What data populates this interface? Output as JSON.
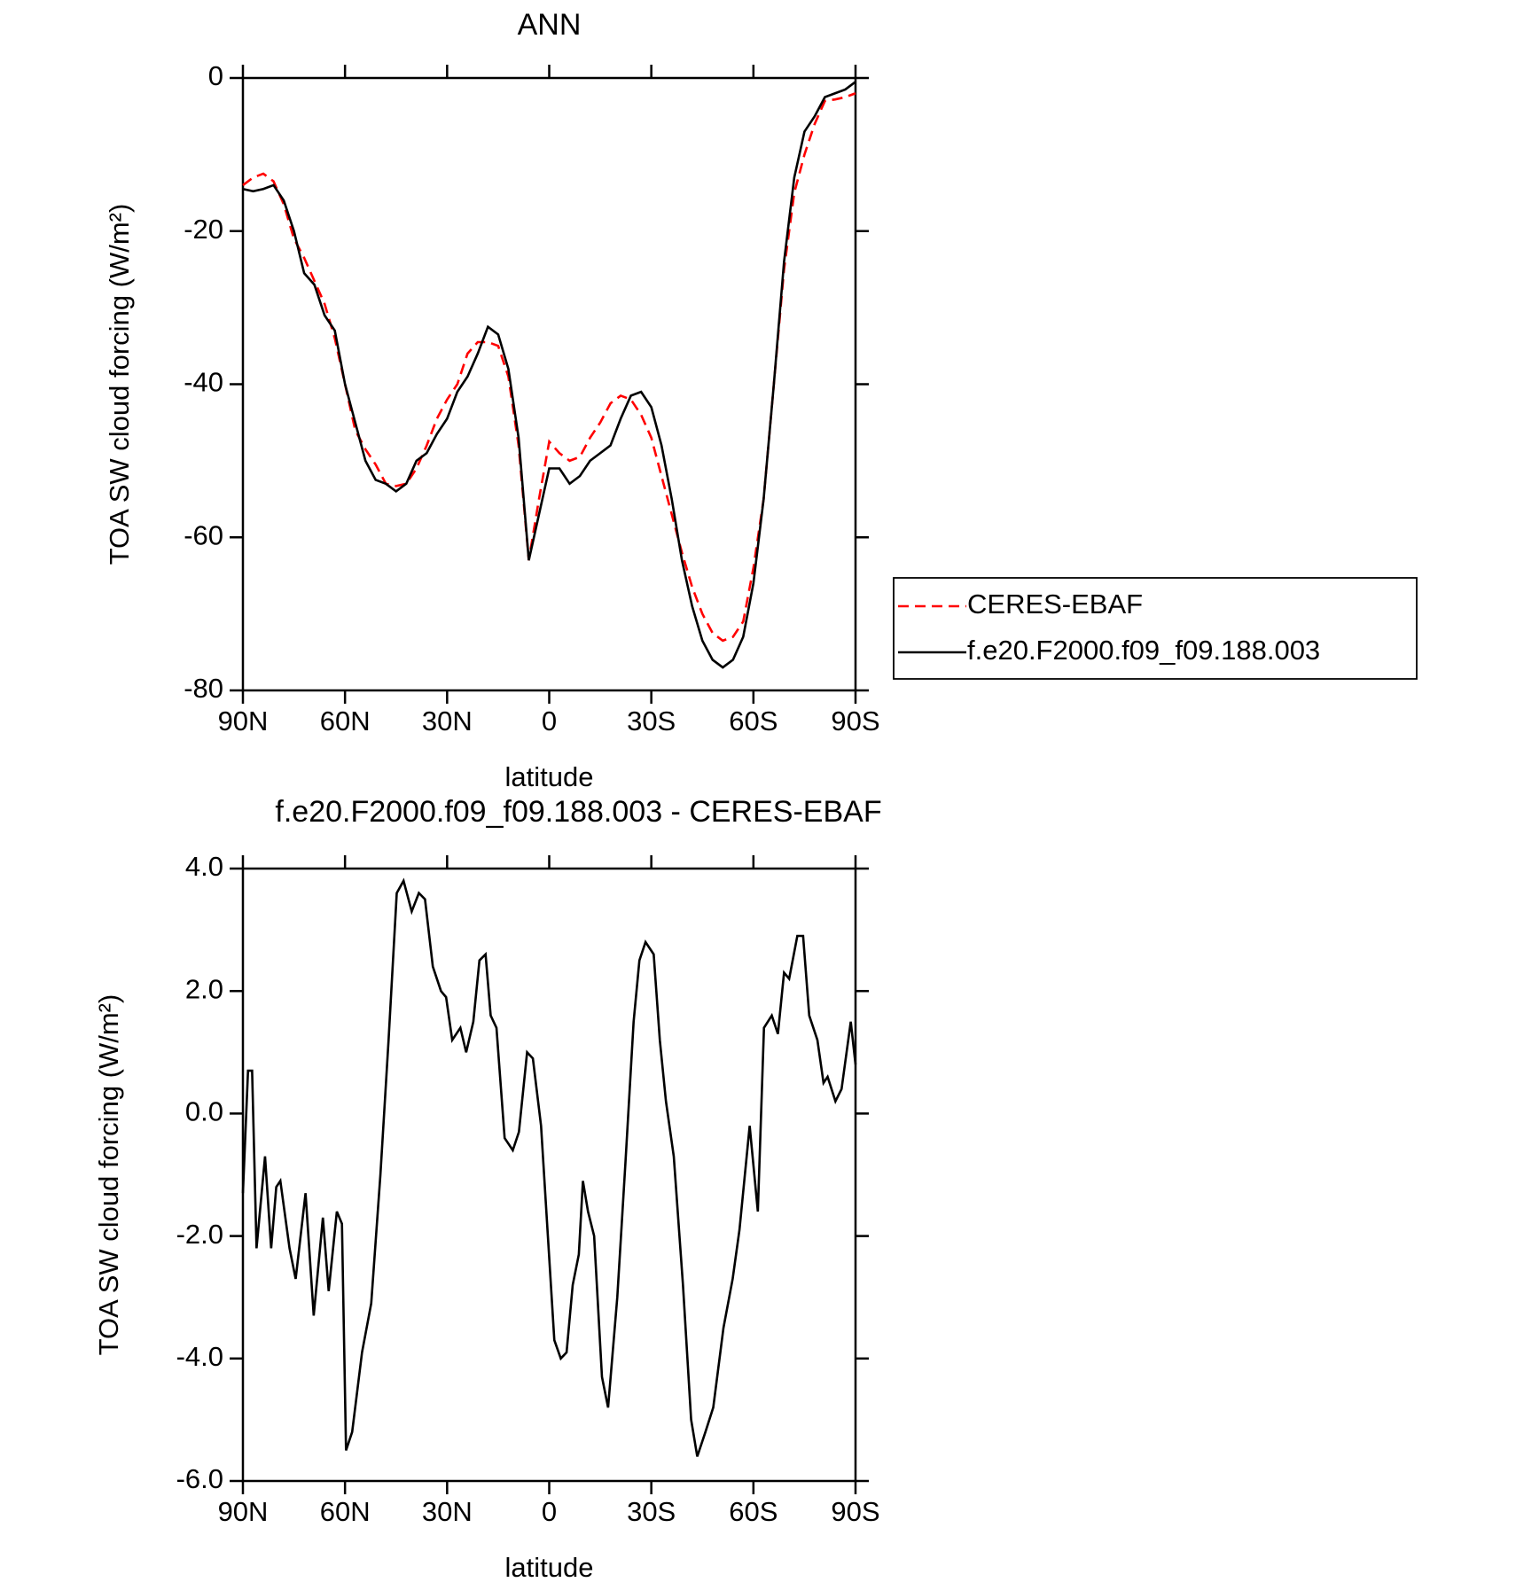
{
  "chart_data": [
    {
      "type": "line",
      "title": "ANN",
      "xlabel": "latitude",
      "ylabel": "TOA SW cloud forcing (W/m²)",
      "x": [
        90,
        87,
        84,
        81,
        78,
        75,
        72,
        69,
        66,
        63,
        60,
        57,
        54,
        51,
        48,
        45,
        42,
        39,
        36,
        33,
        30,
        27,
        24,
        21,
        18,
        15,
        12,
        9,
        6,
        3,
        0,
        -3,
        -6,
        -9,
        -12,
        -15,
        -18,
        -21,
        -24,
        -27,
        -30,
        -33,
        -36,
        -39,
        -42,
        -45,
        -48,
        -51,
        -54,
        -57,
        -60,
        -63,
        -66,
        -69,
        -72,
        -75,
        -78,
        -81,
        -84,
        -87,
        -90
      ],
      "series": [
        {
          "name": "CERES-EBAF",
          "color": "#ff0000",
          "line_style": "dashed",
          "values": [
            -14,
            -13,
            -12.5,
            -13.5,
            -16.5,
            -21,
            -23.5,
            -26.5,
            -29.5,
            -34,
            -40,
            -46,
            -48.5,
            -50.5,
            -53,
            -53.3,
            -53,
            -51,
            -48,
            -44.5,
            -42,
            -40,
            -36,
            -34.5,
            -34.5,
            -35,
            -39,
            -48,
            -63,
            -55,
            -47.5,
            -49,
            -50,
            -49.5,
            -47,
            -45,
            -42.5,
            -41.5,
            -42,
            -44,
            -47,
            -52,
            -57,
            -62,
            -66.5,
            -70,
            -72.5,
            -73.5,
            -73,
            -71,
            -64,
            -55,
            -40,
            -25,
            -15,
            -10,
            -6,
            -3,
            -2.8,
            -2.5,
            -2
          ]
        },
        {
          "name": "f.e20.F2000.f09_f09.188.003",
          "color": "#000000",
          "line_style": "solid",
          "values": [
            -14.5,
            -14.8,
            -14.5,
            -14,
            -16,
            -20,
            -25.5,
            -27,
            -31,
            -33,
            -40,
            -45,
            -50,
            -52.5,
            -53,
            -54,
            -53,
            -50,
            -49,
            -46.5,
            -44.5,
            -41,
            -39,
            -36,
            -32.5,
            -33.5,
            -38,
            -47,
            -63,
            -57,
            -51,
            -51,
            -53,
            -52,
            -50,
            -49,
            -48,
            -44.5,
            -41.5,
            -41,
            -43,
            -48,
            -55,
            -63,
            -69,
            -73.5,
            -76,
            -77,
            -76,
            -73,
            -66,
            -55,
            -40,
            -24,
            -13,
            -7,
            -5,
            -2.5,
            -2,
            -1.5,
            -0.5
          ]
        }
      ],
      "xlim": [
        90,
        -90
      ],
      "xticks": [
        {
          "value": 90,
          "label": "90N"
        },
        {
          "value": 60,
          "label": "60N"
        },
        {
          "value": 30,
          "label": "30N"
        },
        0,
        {
          "value": -30,
          "label": "30S"
        },
        {
          "value": -60,
          "label": "60S"
        },
        {
          "value": -90,
          "label": "90S"
        }
      ],
      "ylim": [
        -80,
        0
      ],
      "yticks": [
        -80,
        -60,
        -40,
        -20,
        0
      ],
      "legend": "right"
    },
    {
      "type": "line",
      "title": "f.e20.F2000.f09_f09.188.003 - CERES-EBAF",
      "xlabel": "latitude",
      "ylabel": "TOA SW cloud forcing (W/m²)",
      "x": [
        90,
        88.5,
        87.3,
        86,
        83.5,
        81.7,
        80.2,
        79,
        76.3,
        74.5,
        71.6,
        69.2,
        66.5,
        64.8,
        62.4,
        60.9,
        59.7,
        57.9,
        55,
        52.3,
        49.6,
        47.2,
        44.8,
        42.8,
        40.4,
        38.3,
        36.5,
        34.2,
        31.8,
        30.3,
        28.5,
        26.1,
        24.4,
        22.3,
        20.5,
        18.7,
        17.2,
        15.5,
        13.1,
        10.7,
        8.9,
        6.5,
        4.8,
        2.4,
        -1.5,
        -3.4,
        -5.1,
        -6.9,
        -8.7,
        -9.9,
        -11.4,
        -13.2,
        -15.5,
        -17.3,
        -20,
        -22.4,
        -24.8,
        -26.5,
        -28.3,
        -30.7,
        -32.5,
        -34.3,
        -36.6,
        -39.3,
        -41.7,
        -43.5,
        -45.9,
        -48.2,
        -51.2,
        -53.9,
        -55.9,
        -58.9,
        -61.3,
        -63.1,
        -65.4,
        -67.2,
        -69,
        -70.5,
        -72.9,
        -74.6,
        -76.4,
        -78.8,
        -80.6,
        -81.8,
        -84.1,
        -85.9,
        -88.6,
        -90
      ],
      "series": [
        {
          "color": "#000000",
          "line_style": "solid",
          "values": [
            -1.3,
            0.7,
            0.7,
            -2.2,
            -0.7,
            -2.2,
            -1.2,
            -1.1,
            -2.2,
            -2.7,
            -1.3,
            -3.3,
            -1.7,
            -2.9,
            -1.6,
            -1.8,
            -5.5,
            -5.2,
            -3.9,
            -3.1,
            -1.0,
            1.2,
            3.6,
            3.8,
            3.3,
            3.6,
            3.5,
            2.4,
            2.0,
            1.9,
            1.2,
            1.4,
            1.0,
            1.5,
            2.5,
            2.6,
            1.6,
            1.4,
            -0.4,
            -0.6,
            -0.3,
            1.0,
            0.9,
            -0.2,
            -3.7,
            -4.0,
            -3.9,
            -2.8,
            -2.3,
            -1.1,
            -1.6,
            -2.0,
            -4.3,
            -4.8,
            -3.0,
            -0.8,
            1.5,
            2.5,
            2.8,
            2.6,
            1.2,
            0.2,
            -0.7,
            -2.8,
            -5.0,
            -5.6,
            -5.2,
            -4.8,
            -3.5,
            -2.7,
            -1.9,
            -0.2,
            -1.6,
            1.4,
            1.6,
            1.3,
            2.3,
            2.2,
            2.9,
            2.9,
            1.6,
            1.2,
            0.5,
            0.6,
            0.2,
            0.4,
            1.5,
            0.8
          ]
        }
      ],
      "xlim": [
        90,
        -90
      ],
      "xticks": [
        {
          "value": 90,
          "label": "90N"
        },
        {
          "value": 60,
          "label": "60N"
        },
        {
          "value": 30,
          "label": "30N"
        },
        0,
        {
          "value": -30,
          "label": "30S"
        },
        {
          "value": -60,
          "label": "60S"
        },
        {
          "value": -90,
          "label": "90S"
        }
      ],
      "ylim": [
        -6,
        4
      ],
      "yticks": [
        {
          "value": -6,
          "label": "-6.0"
        },
        {
          "value": -4,
          "label": "-4.0"
        },
        {
          "value": -2,
          "label": "-2.0"
        },
        {
          "value": 0,
          "label": "0.0"
        },
        {
          "value": 2,
          "label": "2.0"
        },
        {
          "value": 4,
          "label": "4.0"
        }
      ]
    }
  ]
}
